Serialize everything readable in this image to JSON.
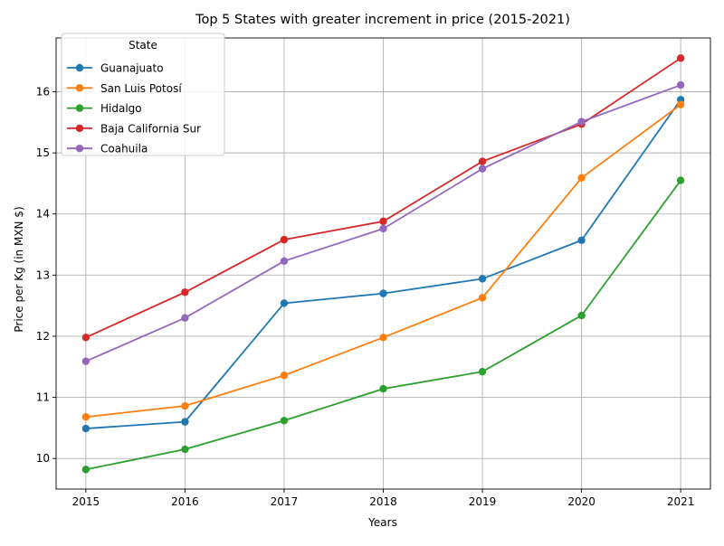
{
  "chart_data": {
    "type": "line",
    "title": "Top 5 States with greater increment in price (2015-2021)",
    "xlabel": "Years",
    "ylabel": "Price per Kg (in MXN $)",
    "x": [
      2015,
      2016,
      2017,
      2018,
      2019,
      2020,
      2021
    ],
    "xticks": [
      "2015",
      "2016",
      "2017",
      "2018",
      "2019",
      "2020",
      "2021"
    ],
    "xlim": [
      2014.7,
      2021.3
    ],
    "ylim": [
      9.5,
      16.88
    ],
    "yticks": [
      "10",
      "11",
      "12",
      "13",
      "14",
      "15",
      "16"
    ],
    "grid": true,
    "legend": {
      "title": "State",
      "placement": "upper-left"
    },
    "series": [
      {
        "name": "Guanajuato",
        "color": "#1f77b4",
        "values": [
          10.49,
          10.6,
          12.54,
          12.7,
          12.94,
          13.57,
          15.87
        ]
      },
      {
        "name": "San Luis Potosí",
        "color": "#ff7f0e",
        "values": [
          10.68,
          10.86,
          11.36,
          11.98,
          12.63,
          14.59,
          15.79
        ]
      },
      {
        "name": "Hidalgo",
        "color": "#2ca02c",
        "values": [
          9.82,
          10.15,
          10.62,
          11.14,
          11.42,
          12.34,
          14.55
        ]
      },
      {
        "name": "Baja California Sur",
        "color": "#d62728",
        "values": [
          11.98,
          12.72,
          13.58,
          13.88,
          14.86,
          15.47,
          16.55
        ]
      },
      {
        "name": "Coahuila",
        "color": "#9467bd",
        "values": [
          11.59,
          12.3,
          13.23,
          13.76,
          14.74,
          15.51,
          16.11
        ]
      }
    ]
  }
}
